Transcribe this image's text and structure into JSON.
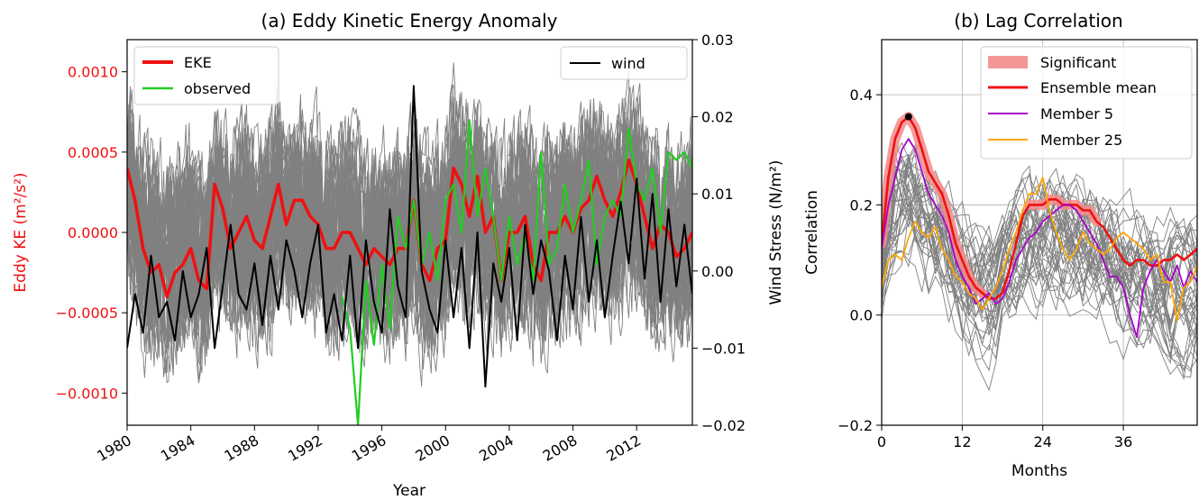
{
  "chart_data": [
    {
      "type": "line",
      "title": "(a) Eddy Kinetic Energy Anomaly",
      "xlabel": "Year",
      "ylabel_left": "Eddy KE (m²/s²)",
      "ylabel_right": "Wind Stress (N/m²)",
      "xlim": [
        1980,
        2015.5
      ],
      "ylim_left": [
        -0.0012,
        0.0012
      ],
      "ylim_right": [
        -0.02,
        0.03
      ],
      "xticks": [
        1980,
        1984,
        1988,
        1992,
        1996,
        2000,
        2004,
        2008,
        2012
      ],
      "xtick_labels": [
        "1980",
        "1984",
        "1988",
        "1992",
        "1996",
        "2000",
        "2004",
        "2008",
        "2012"
      ],
      "yticks_left": [
        -0.001,
        -0.0005,
        0.0,
        0.0005,
        0.001
      ],
      "ytick_labels_left": [
        "−0.0010",
        "−0.0005",
        "0.0000",
        "0.0005",
        "0.0010"
      ],
      "yticks_right": [
        -0.02,
        -0.01,
        0.0,
        0.01,
        0.02,
        0.03
      ],
      "ytick_labels_right": [
        "−0.02",
        "−0.01",
        "0.00",
        "0.01",
        "0.02",
        "0.03"
      ],
      "grid": false,
      "legend_left": {
        "position": "top-left",
        "entries": [
          "EKE",
          "observed"
        ]
      },
      "legend_right": {
        "position": "top-right",
        "entries": [
          "wind"
        ]
      },
      "colors": {
        "eke": "#ee1111",
        "observed": "#22cc22",
        "wind": "#000000",
        "members": "#808080",
        "left_axis": "#ee1111"
      },
      "members_count": 40,
      "members_spread": 0.00045,
      "series": [
        {
          "name": "EKE",
          "axis": "left",
          "color": "#ee1111",
          "x": [
            1980,
            1980.5,
            1981,
            1981.5,
            1982,
            1982.5,
            1983,
            1983.5,
            1984,
            1984.5,
            1985,
            1985.5,
            1986,
            1986.5,
            1987,
            1987.5,
            1988,
            1988.5,
            1989,
            1989.5,
            1990,
            1990.5,
            1991,
            1991.5,
            1992,
            1992.5,
            1993,
            1993.5,
            1994,
            1994.5,
            1995,
            1995.5,
            1996,
            1996.5,
            1997,
            1997.5,
            1998,
            1998.5,
            1999,
            1999.5,
            2000,
            2000.5,
            2001,
            2001.5,
            2002,
            2002.5,
            2003,
            2003.5,
            2004,
            2004.5,
            2005,
            2005.5,
            2006,
            2006.5,
            2007,
            2007.5,
            2008,
            2008.5,
            2009,
            2009.5,
            2010,
            2010.5,
            2011,
            2011.5,
            2012,
            2012.5,
            2013,
            2013.5,
            2014,
            2014.5,
            2015,
            2015.5
          ],
          "y": [
            0.0004,
            0.0002,
            -0.0001,
            -0.00025,
            -0.0002,
            -0.0004,
            -0.00025,
            -0.0002,
            -0.0001,
            -0.0003,
            -0.00035,
            0.0003,
            0.00015,
            -0.0001,
            0.0,
            0.0001,
            -5e-05,
            -0.0001,
            0.0001,
            0.0003,
            5e-05,
            0.0002,
            0.0002,
            0.0001,
            5e-05,
            -0.0001,
            -0.0001,
            0.0,
            0.0,
            -0.0001,
            -0.0002,
            -0.0001,
            -0.00015,
            -0.0002,
            -0.0001,
            -0.0001,
            0.0002,
            -0.0002,
            -0.0003,
            -0.0001,
            -5e-05,
            0.0004,
            0.0003,
            0.0001,
            0.00035,
            0.0,
            0.0001,
            -0.0003,
            0.0,
            0.0,
            0.0001,
            -0.0002,
            -0.0003,
            0.0,
            0.0,
            0.0001,
            0.0,
            0.00015,
            0.0002,
            0.00035,
            0.0002,
            0.0001,
            0.00025,
            0.00045,
            0.0003,
            0.0001,
            -0.0001,
            5e-05,
            0.0,
            -0.00015,
            -0.0001,
            0.0
          ]
        },
        {
          "name": "observed",
          "axis": "left",
          "color": "#22cc22",
          "x": [
            1993.5,
            1994,
            1994.5,
            1995,
            1995.5,
            1996,
            1996.5,
            1997,
            1997.5,
            1998,
            1998.5,
            1999,
            1999.5,
            2000,
            2000.5,
            2001,
            2001.5,
            2002,
            2002.5,
            2003,
            2003.5,
            2004,
            2004.5,
            2005,
            2005.5,
            2006,
            2006.5,
            2007,
            2007.5,
            2008,
            2008.5,
            2009,
            2009.5,
            2010,
            2010.5,
            2011,
            2011.5,
            2012,
            2012.5,
            2013,
            2013.5,
            2014,
            2014.5,
            2015,
            2015.5
          ],
          "y": [
            -0.0004,
            -0.0006,
            -0.0012,
            -0.0003,
            -0.0007,
            -0.0002,
            -0.0006,
            0.0001,
            -0.0001,
            0.0002,
            -0.0002,
            0.0,
            -0.0003,
            0.0002,
            0.0003,
            0.0,
            0.0007,
            0.0001,
            0.0004,
            0.0001,
            -0.0003,
            0.0001,
            -0.0002,
            0.0,
            -0.0003,
            0.0005,
            -0.0002,
            -0.0001,
            0.0003,
            0.0,
            0.0002,
            0.00045,
            -0.0002,
            0.0001,
            0.0002,
            0.0001,
            0.00065,
            0.0003,
            0.0002,
            0.0004,
            0.0,
            0.0005,
            0.00045,
            0.0005,
            0.0004
          ]
        },
        {
          "name": "wind",
          "axis": "right",
          "color": "#000000",
          "x": [
            1980,
            1980.5,
            1981,
            1981.5,
            1982,
            1982.5,
            1983,
            1983.5,
            1984,
            1984.5,
            1985,
            1985.5,
            1986,
            1986.5,
            1987,
            1987.5,
            1988,
            1988.5,
            1989,
            1989.5,
            1990,
            1990.5,
            1991,
            1991.5,
            1992,
            1992.5,
            1993,
            1993.5,
            1994,
            1994.5,
            1995,
            1995.5,
            1996,
            1996.5,
            1997,
            1997.5,
            1998,
            1998.5,
            1999,
            1999.5,
            2000,
            2000.5,
            2001,
            2001.5,
            2002,
            2002.5,
            2003,
            2003.5,
            2004,
            2004.5,
            2005,
            2005.5,
            2006,
            2006.5,
            2007,
            2007.5,
            2008,
            2008.5,
            2009,
            2009.5,
            2010,
            2010.5,
            2011,
            2011.5,
            2012,
            2012.5,
            2013,
            2013.5,
            2014,
            2014.5,
            2015,
            2015.5
          ],
          "y": [
            -0.01,
            -0.003,
            -0.008,
            0.002,
            -0.006,
            -0.004,
            -0.009,
            0.0,
            -0.006,
            -0.003,
            0.003,
            -0.01,
            -0.002,
            0.006,
            -0.003,
            -0.005,
            0.001,
            -0.007,
            0.002,
            -0.005,
            0.004,
            0.0,
            -0.006,
            0.001,
            0.006,
            -0.008,
            -0.003,
            -0.009,
            0.002,
            -0.01,
            0.004,
            -0.004,
            -0.008,
            0.008,
            -0.002,
            -0.006,
            0.024,
            0.0,
            -0.005,
            -0.008,
            0.004,
            -0.006,
            0.003,
            -0.01,
            0.005,
            -0.015,
            0.001,
            -0.004,
            0.003,
            -0.009,
            0.006,
            -0.003,
            0.004,
            0.0,
            -0.009,
            0.002,
            -0.005,
            0.007,
            -0.004,
            0.004,
            -0.006,
            0.002,
            0.009,
            0.001,
            0.012,
            -0.001,
            0.01,
            -0.004,
            0.008,
            -0.002,
            0.006,
            -0.003
          ]
        }
      ]
    },
    {
      "type": "line",
      "title": "(b) Lag Correlation",
      "xlabel": "Months",
      "ylabel": "Correlation",
      "xlim": [
        0,
        47
      ],
      "ylim": [
        -0.2,
        0.5
      ],
      "xticks": [
        0,
        12,
        24,
        36
      ],
      "xtick_labels": [
        "0",
        "12",
        "24",
        "36"
      ],
      "yticks": [
        -0.2,
        0.0,
        0.2,
        0.4
      ],
      "ytick_labels": [
        "−0.2",
        "0.0",
        "0.2",
        "0.4"
      ],
      "grid": true,
      "legend": {
        "position": "top-right",
        "entries": [
          "Significant",
          "Ensemble mean",
          "Member 5",
          "Member 25"
        ]
      },
      "colors": {
        "significant": "#f28b8b",
        "mean": "#ee1111",
        "member5": "#aa00cc",
        "member25": "#ffa500",
        "members": "#808080",
        "peak": "#000000"
      },
      "members_count": 40,
      "members_spread": 0.06,
      "significant_ranges": [
        [
          0,
          15
        ],
        [
          22,
          32
        ]
      ],
      "peak": {
        "x": 4,
        "y": 0.36
      },
      "series": [
        {
          "name": "Ensemble mean",
          "color": "#ee1111",
          "x": [
            0,
            1,
            2,
            3,
            4,
            5,
            6,
            7,
            8,
            9,
            10,
            11,
            12,
            13,
            14,
            15,
            16,
            17,
            18,
            19,
            20,
            21,
            22,
            23,
            24,
            25,
            26,
            27,
            28,
            29,
            30,
            31,
            32,
            33,
            34,
            35,
            36,
            37,
            38,
            39,
            40,
            41,
            42,
            43,
            44,
            45,
            46,
            47
          ],
          "y": [
            0.13,
            0.25,
            0.32,
            0.35,
            0.36,
            0.34,
            0.3,
            0.26,
            0.24,
            0.22,
            0.18,
            0.13,
            0.1,
            0.07,
            0.05,
            0.04,
            0.03,
            0.03,
            0.04,
            0.08,
            0.13,
            0.18,
            0.2,
            0.2,
            0.2,
            0.21,
            0.21,
            0.2,
            0.2,
            0.2,
            0.19,
            0.19,
            0.17,
            0.16,
            0.14,
            0.12,
            0.1,
            0.09,
            0.1,
            0.1,
            0.09,
            0.09,
            0.1,
            0.1,
            0.11,
            0.1,
            0.11,
            0.12
          ]
        },
        {
          "name": "Member 5",
          "color": "#aa00cc",
          "x": [
            0,
            1,
            2,
            3,
            4,
            5,
            6,
            7,
            8,
            9,
            10,
            11,
            12,
            13,
            14,
            15,
            16,
            17,
            18,
            19,
            20,
            21,
            22,
            23,
            24,
            25,
            26,
            27,
            28,
            29,
            30,
            31,
            32,
            33,
            34,
            35,
            36,
            37,
            38,
            39,
            40,
            41,
            42,
            43,
            44,
            45,
            46,
            47
          ],
          "y": [
            0.12,
            0.2,
            0.25,
            0.3,
            0.32,
            0.3,
            0.26,
            0.22,
            0.2,
            0.18,
            0.15,
            0.1,
            0.07,
            0.05,
            0.02,
            0.03,
            0.04,
            0.02,
            0.03,
            0.06,
            0.1,
            0.12,
            0.14,
            0.15,
            0.17,
            0.18,
            0.19,
            0.2,
            0.2,
            0.19,
            0.17,
            0.15,
            0.13,
            0.1,
            0.07,
            0.07,
            0.05,
            0.0,
            -0.04,
            0.05,
            0.08,
            0.1,
            0.08,
            0.06,
            0.09,
            0.05,
            0.08,
            0.06
          ]
        },
        {
          "name": "Member 25",
          "color": "#ffa500",
          "x": [
            0,
            1,
            2,
            3,
            4,
            5,
            6,
            7,
            8,
            9,
            10,
            11,
            12,
            13,
            14,
            15,
            16,
            17,
            18,
            19,
            20,
            21,
            22,
            23,
            24,
            25,
            26,
            27,
            28,
            29,
            30,
            31,
            32,
            33,
            34,
            35,
            36,
            37,
            38,
            39,
            40,
            41,
            42,
            43,
            44,
            45,
            46,
            47
          ],
          "y": [
            0.05,
            0.1,
            0.11,
            0.1,
            0.14,
            0.17,
            0.15,
            0.14,
            0.16,
            0.12,
            0.1,
            0.07,
            0.06,
            0.04,
            0.03,
            0.01,
            0.03,
            0.05,
            0.08,
            0.12,
            0.15,
            0.19,
            0.22,
            0.22,
            0.25,
            0.19,
            0.15,
            0.12,
            0.1,
            0.12,
            0.15,
            0.13,
            0.12,
            0.11,
            0.12,
            0.14,
            0.15,
            0.14,
            0.13,
            0.12,
            0.1,
            0.11,
            0.06,
            0.06,
            -0.01,
            0.05,
            0.06,
            0.09
          ]
        }
      ]
    }
  ]
}
